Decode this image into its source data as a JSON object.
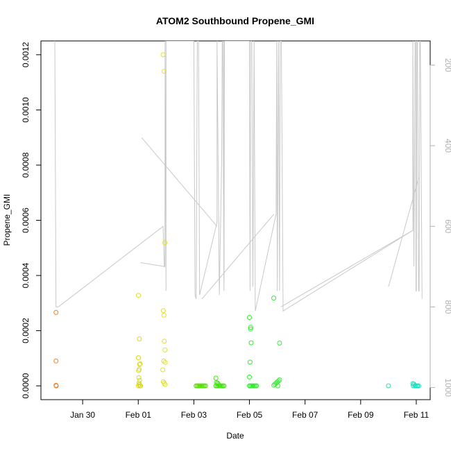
{
  "chart_data": {
    "type": "scatter",
    "title": "ATOM2 Southbound Propene_GMI",
    "xlabel": "Date",
    "ylabel": "Propene_GMI",
    "xlim": [
      "2024-01-28T12:00",
      "2024-02-11T12:00"
    ],
    "ylim": [
      -5e-05,
      0.00125
    ],
    "x_ticks": [
      {
        "label": "Jan 30",
        "date": "2024-01-30T00:00"
      },
      {
        "label": "Feb 01",
        "date": "2024-02-01T00:00"
      },
      {
        "label": "Feb 03",
        "date": "2024-02-03T00:00"
      },
      {
        "label": "Feb 05",
        "date": "2024-02-05T00:00"
      },
      {
        "label": "Feb 07",
        "date": "2024-02-07T00:00"
      },
      {
        "label": "Feb 09",
        "date": "2024-02-09T00:00"
      },
      {
        "label": "Feb 11",
        "date": "2024-02-11T00:00"
      }
    ],
    "y_ticks": [
      {
        "label": "0.0000",
        "value": 0.0
      },
      {
        "label": "0.0002",
        "value": 0.0002
      },
      {
        "label": "0.0004",
        "value": 0.0004
      },
      {
        "label": "0.0006",
        "value": 0.0006
      },
      {
        "label": "0.0008",
        "value": 0.0008
      },
      {
        "label": "0.0010",
        "value": 0.001
      },
      {
        "label": "0.0012",
        "value": 0.0012
      }
    ],
    "right_axis": {
      "lim": [
        1030,
        140
      ],
      "color": "#b0b0b0",
      "ticks": [
        {
          "label": "200",
          "value": 200
        },
        {
          "label": "400",
          "value": 400
        },
        {
          "label": "600",
          "value": 600
        },
        {
          "label": "800",
          "value": 800
        },
        {
          "label": "1000",
          "value": 1000
        }
      ]
    },
    "grid": false,
    "legend": "none",
    "point_groups": [
      {
        "color": "#e8822a",
        "points": [
          [
            "2024-01-29T01:00",
            0.000266
          ],
          [
            "2024-01-29T01:00",
            9e-05
          ],
          [
            "2024-01-29T01:00",
            2e-06
          ],
          [
            "2024-01-29T01:10",
            0.0
          ]
        ]
      },
      {
        "color": "#d8d820",
        "points": [
          [
            "2024-02-01T00:10",
            0.000328
          ],
          [
            "2024-02-01T01:00",
            0.00017
          ],
          [
            "2024-02-01T00:10",
            0.000102
          ],
          [
            "2024-02-01T01:40",
            8e-05
          ],
          [
            "2024-02-01T01:10",
            7.8e-05
          ],
          [
            "2024-02-01T00:50",
            6e-05
          ],
          [
            "2024-02-01T00:20",
            5.5e-05
          ],
          [
            "2024-02-01T00:30",
            3e-05
          ],
          [
            "2024-02-01T01:10",
            2e-05
          ],
          [
            "2024-02-01T00:40",
            1e-05
          ],
          [
            "2024-02-01T01:00",
            4e-06
          ],
          [
            "2024-02-01T00:10",
            0.0
          ],
          [
            "2024-02-01T01:30",
            0.0
          ],
          [
            "2024-02-01T02:00",
            0.0
          ]
        ]
      },
      {
        "color": "#e0e02a",
        "points": [
          [
            "2024-02-01T21:30",
            0.0012
          ],
          [
            "2024-02-01T22:20",
            0.00114
          ],
          [
            "2024-02-01T23:00",
            0.000519
          ],
          [
            "2024-02-01T21:40",
            0.000272
          ],
          [
            "2024-02-01T22:10",
            0.000256
          ],
          [
            "2024-02-01T22:30",
            0.000162
          ],
          [
            "2024-02-01T23:00",
            0.00013
          ],
          [
            "2024-02-01T22:00",
            9e-05
          ],
          [
            "2024-02-01T23:20",
            8.5e-05
          ],
          [
            "2024-02-01T21:10",
            5.8e-05
          ],
          [
            "2024-02-01T21:40",
            1.5e-05
          ],
          [
            "2024-02-01T22:20",
            1e-05
          ],
          [
            "2024-02-01T23:10",
            5e-06
          ]
        ]
      },
      {
        "color": "#55e000",
        "points": [
          [
            "2024-02-03T02:00",
            0.0
          ],
          [
            "2024-02-03T03:00",
            0.0
          ],
          [
            "2024-02-03T04:00",
            0.0
          ],
          [
            "2024-02-03T05:00",
            0.0
          ],
          [
            "2024-02-03T06:00",
            0.0
          ],
          [
            "2024-02-03T07:00",
            0.0
          ],
          [
            "2024-02-03T08:00",
            0.0
          ],
          [
            "2024-02-03T09:00",
            0.0
          ],
          [
            "2024-02-03T10:00",
            0.0
          ]
        ]
      },
      {
        "color": "#44e410",
        "points": [
          [
            "2024-02-03T19:00",
            2.8e-05
          ],
          [
            "2024-02-03T19:30",
            1.2e-05
          ],
          [
            "2024-02-03T20:30",
            1e-05
          ],
          [
            "2024-02-03T21:00",
            6e-06
          ],
          [
            "2024-02-03T19:00",
            0.0
          ],
          [
            "2024-02-03T20:00",
            0.0
          ],
          [
            "2024-02-03T21:00",
            0.0
          ],
          [
            "2024-02-03T22:00",
            0.0
          ],
          [
            "2024-02-03T23:00",
            0.0
          ],
          [
            "2024-02-04T00:00",
            0.0
          ],
          [
            "2024-02-04T01:00",
            0.0
          ],
          [
            "2024-02-04T02:00",
            0.0
          ]
        ]
      },
      {
        "color": "#30e830",
        "points": [
          [
            "2024-02-05T00:00",
            0.000248
          ],
          [
            "2024-02-05T01:00",
            0.000212
          ],
          [
            "2024-02-05T01:00",
            0.000206
          ],
          [
            "2024-02-05T01:30",
            0.000156
          ],
          [
            "2024-02-05T00:30",
            8.6e-05
          ],
          [
            "2024-02-05T00:00",
            3.2e-05
          ],
          [
            "2024-02-05T00:00",
            0.0
          ],
          [
            "2024-02-05T01:00",
            0.0
          ],
          [
            "2024-02-05T02:00",
            0.0
          ],
          [
            "2024-02-05T03:00",
            0.0
          ],
          [
            "2024-02-05T04:00",
            0.0
          ],
          [
            "2024-02-05T05:00",
            0.0
          ],
          [
            "2024-02-05T06:00",
            0.0
          ]
        ]
      },
      {
        "color": "#38ec38",
        "points": [
          [
            "2024-02-05T21:00",
            0.000318
          ],
          [
            "2024-02-06T02:00",
            0.000155
          ],
          [
            "2024-02-06T02:00",
            2.2e-05
          ],
          [
            "2024-02-06T01:00",
            1.8e-05
          ],
          [
            "2024-02-06T00:00",
            1.4e-05
          ],
          [
            "2024-02-05T23:00",
            1e-05
          ],
          [
            "2024-02-05T22:00",
            6e-06
          ],
          [
            "2024-02-05T21:00",
            2e-06
          ],
          [
            "2024-02-06T00:30",
            0.0
          ]
        ]
      },
      {
        "color": "#20e6a0",
        "points": [
          [
            "2024-02-10T00:00",
            0.0
          ]
        ]
      },
      {
        "color": "#10e0c0",
        "points": [
          [
            "2024-02-10T21:00",
            8e-06
          ],
          [
            "2024-02-10T22:00",
            6e-06
          ],
          [
            "2024-02-10T21:30",
            0.0
          ],
          [
            "2024-02-10T23:00",
            0.0
          ],
          [
            "2024-02-11T00:00",
            0.0
          ],
          [
            "2024-02-11T01:00",
            0.0
          ],
          [
            "2024-02-11T02:00",
            0.0
          ]
        ]
      }
    ],
    "line_series": {
      "color": "#c8c8c8",
      "axis": "right",
      "points": [
        [
          "2024-01-29T00:00",
          140
        ],
        [
          "2024-01-29T00:00",
          140
        ],
        [
          "2024-01-29T01:00",
          800
        ],
        [
          "2024-01-29T03:00",
          800
        ],
        [
          "2024-02-01T21:30",
          600
        ],
        [
          "2024-02-01T21:30",
          600
        ],
        [
          "2024-02-01T22:30",
          700
        ],
        [
          "2024-02-01T23:00",
          700
        ],
        [
          "2024-02-01T23:10",
          140
        ],
        [
          "2024-02-01T23:10",
          140
        ],
        [
          "2024-02-02T00:00",
          760
        ],
        [
          "2024-02-02T00:00",
          140
        ],
        [
          "2024-02-03T00:00",
          140
        ],
        [
          "2024-02-03T01:00",
          770
        ],
        [
          "2024-02-03T02:00",
          780
        ],
        [
          "2024-02-03T03:00",
          140
        ],
        [
          "2024-02-03T04:00",
          140
        ],
        [
          "2024-02-03T05:00",
          770
        ],
        [
          "2024-02-03T20:00",
          590
        ],
        [
          "2024-02-03T20:00",
          140
        ],
        [
          "2024-02-03T22:00",
          770
        ],
        [
          "2024-02-04T00:00",
          440
        ],
        [
          "2024-02-04T00:30",
          140
        ],
        [
          "2024-02-04T01:00",
          140
        ],
        [
          "2024-02-04T02:00",
          760
        ],
        [
          "2024-02-04T02:30",
          140
        ],
        [
          "2024-02-05T00:00",
          140
        ],
        [
          "2024-02-05T00:30",
          760
        ],
        [
          "2024-02-05T01:00",
          140
        ],
        [
          "2024-02-05T02:00",
          140
        ],
        [
          "2024-02-05T03:00",
          750
        ],
        [
          "2024-02-05T04:00",
          140
        ],
        [
          "2024-02-05T05:00",
          810
        ],
        [
          "2024-02-05T23:00",
          570
        ],
        [
          "2024-02-05T23:30",
          140
        ],
        [
          "2024-02-06T00:00",
          760
        ],
        [
          "2024-02-06T01:00",
          140
        ],
        [
          "2024-02-06T02:00",
          760
        ],
        [
          "2024-02-06T02:30",
          140
        ],
        [
          "2024-02-06T03:00",
          140
        ],
        [
          "2024-02-06T03:30",
          140
        ],
        [
          "2024-02-06T05:00",
          810
        ],
        [
          "2024-02-10T21:00",
          610
        ],
        [
          "2024-02-10T21:00",
          140
        ],
        [
          "2024-02-10T22:00",
          700
        ],
        [
          "2024-02-10T23:00",
          140
        ],
        [
          "2024-02-10T23:30",
          140
        ],
        [
          "2024-02-10T23:45",
          760
        ],
        [
          "2024-02-11T00:00",
          760
        ],
        [
          "2024-02-11T00:30",
          140
        ],
        [
          "2024-02-11T01:00",
          140
        ],
        [
          "2024-02-11T02:00",
          760
        ],
        [
          "2024-02-11T02:30",
          760
        ],
        [
          "2024-02-11T03:00",
          140
        ],
        [
          "2024-02-11T03:30",
          140
        ],
        [
          "2024-02-11T05:00",
          780
        ]
      ]
    },
    "extra_line_segments": [
      [
        [
          "2024-02-01T02:00",
          690
        ],
        [
          "2024-02-01T23:00",
          700
        ]
      ],
      [
        [
          "2024-02-01T03:00",
          380
        ],
        [
          "2024-02-03T20:00",
          600
        ]
      ],
      [
        [
          "2024-02-04T02:00",
          730
        ],
        [
          "2024-02-04T02:00",
          120
        ]
      ],
      [
        [
          "2024-02-03T07:00",
          780
        ],
        [
          "2024-02-05T21:00",
          570
        ]
      ],
      [
        [
          "2024-02-06T03:00",
          800
        ],
        [
          "2024-02-10T21:00",
          610
        ]
      ],
      [
        [
          "2024-02-10T00:00",
          750
        ],
        [
          "2024-02-11T02:00",
          480
        ]
      ]
    ]
  }
}
